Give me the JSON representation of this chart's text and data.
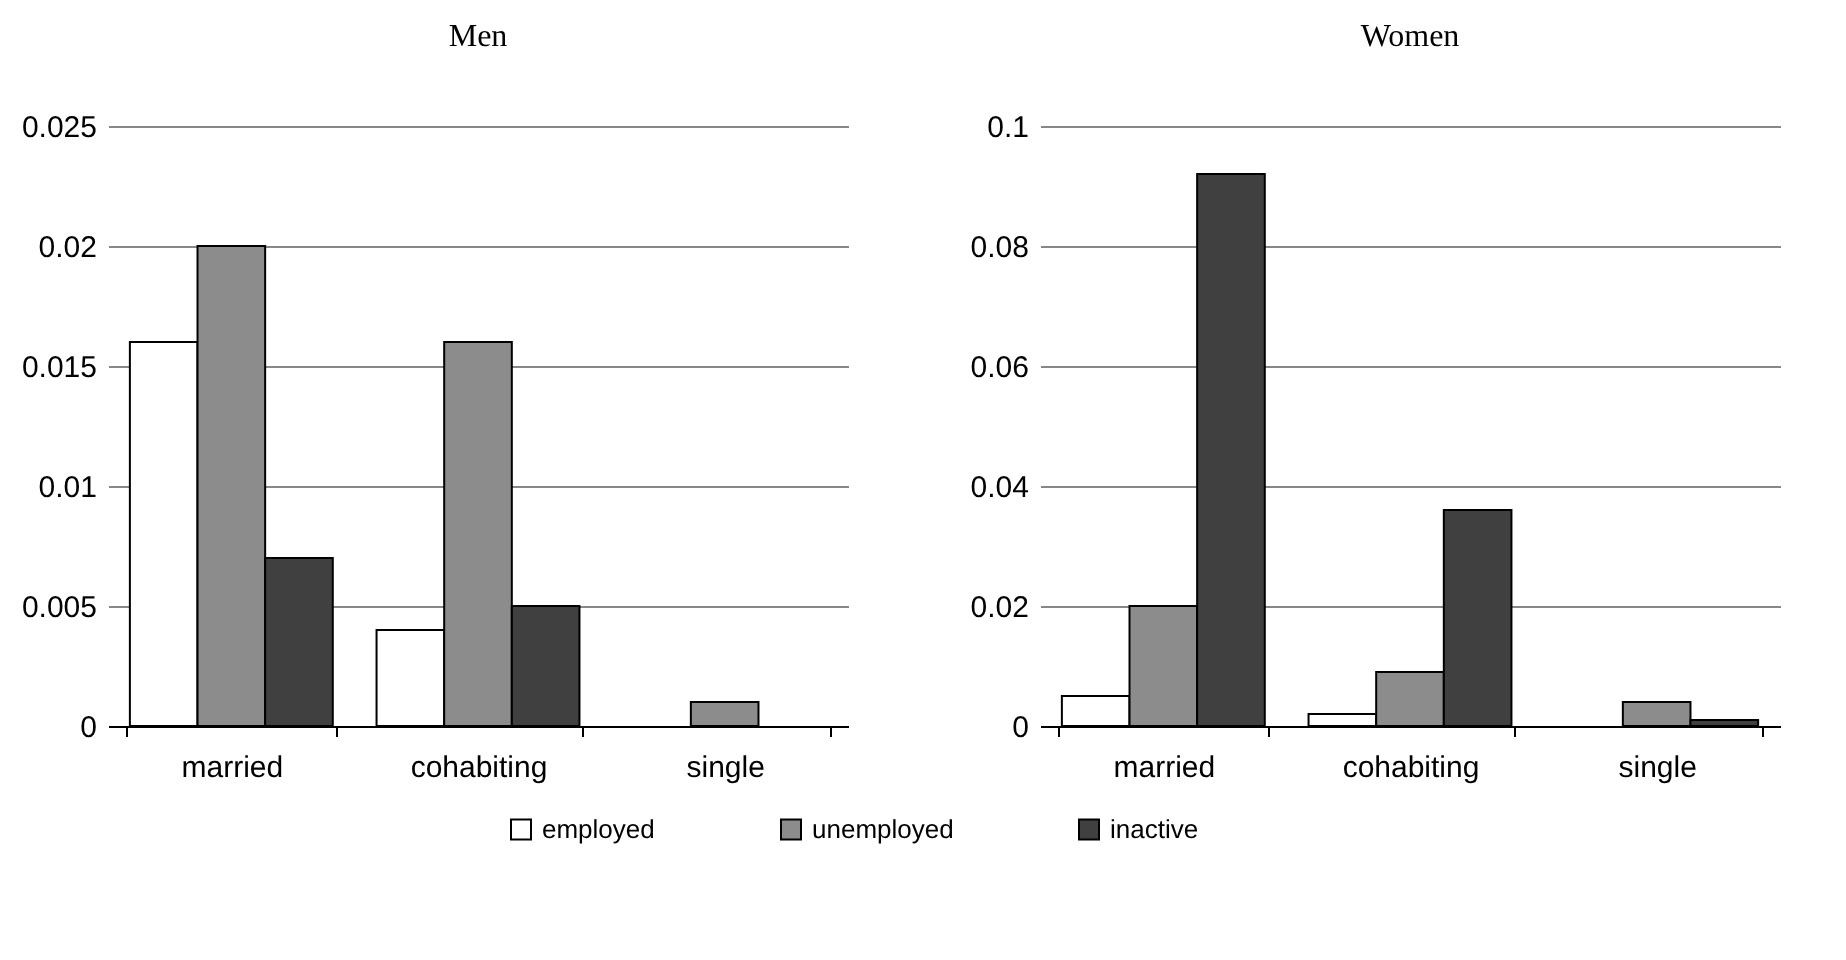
{
  "chart_data": [
    {
      "type": "bar",
      "title": "Men",
      "categories": [
        "married",
        "cohabiting",
        "single"
      ],
      "series": [
        {
          "name": "employed",
          "color": "#ffffff",
          "values": [
            0.016,
            0.004,
            null
          ]
        },
        {
          "name": "unemployed",
          "color": "#8c8c8c",
          "values": [
            0.02,
            0.016,
            0.001
          ]
        },
        {
          "name": "inactive",
          "color": "#404040",
          "values": [
            0.007,
            0.005,
            null
          ]
        }
      ],
      "ylim": [
        0,
        0.025
      ],
      "yticks": [
        0,
        0.005,
        0.01,
        0.015,
        0.02,
        0.025
      ],
      "grid": "y",
      "legend": "bottom"
    },
    {
      "type": "bar",
      "title": "Women",
      "categories": [
        "married",
        "cohabiting",
        "single"
      ],
      "series": [
        {
          "name": "employed",
          "color": "#ffffff",
          "values": [
            0.005,
            0.002,
            null
          ]
        },
        {
          "name": "unemployed",
          "color": "#8c8c8c",
          "values": [
            0.02,
            0.009,
            0.004
          ]
        },
        {
          "name": "inactive",
          "color": "#404040",
          "values": [
            0.092,
            0.036,
            0.001
          ]
        }
      ],
      "ylim": [
        0,
        0.1
      ],
      "yticks": [
        0,
        0.02,
        0.04,
        0.06,
        0.08,
        0.1
      ],
      "grid": "y",
      "legend": "bottom"
    }
  ]
}
